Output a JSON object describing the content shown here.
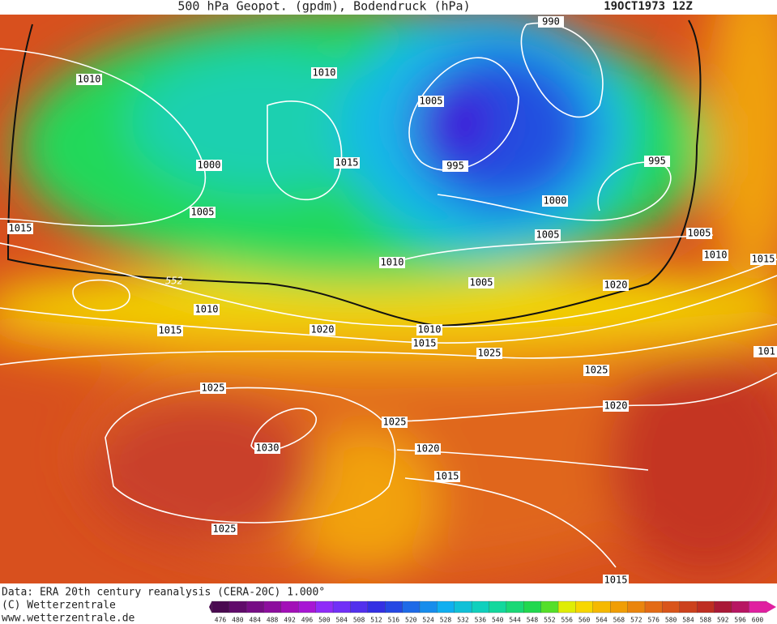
{
  "header": {
    "title": "500 hPa Geopot. (gpdm), Bodendruck (hPa)",
    "date": "19OCT1973  12Z"
  },
  "isobar_labels": [
    "1010",
    "1010",
    "990",
    "1005",
    "1000",
    "1015",
    "995",
    "995",
    "1005",
    "1000",
    "1015",
    "1005",
    "1005",
    "1010",
    "1010",
    "1015",
    "552",
    "1005",
    "1020",
    "1010",
    "1015",
    "1020",
    "1010",
    "1015",
    "1025",
    "1025",
    "101",
    "1025",
    "1020",
    "1025",
    "1030",
    "1020",
    "1015",
    "1025",
    "1015"
  ],
  "footer": {
    "source": "Data: ERA 20th century reanalysis (CERA-20C) 1.000°",
    "copyright": "(C) Wetterzentrale",
    "url": "www.wetterzentrale.de"
  },
  "colorbar": {
    "labels": [
      476,
      480,
      484,
      488,
      492,
      496,
      500,
      504,
      508,
      512,
      516,
      520,
      524,
      528,
      532,
      536,
      540,
      544,
      548,
      552,
      556,
      560,
      564,
      568,
      572,
      576,
      580,
      584,
      588,
      592,
      596,
      600
    ]
  }
}
